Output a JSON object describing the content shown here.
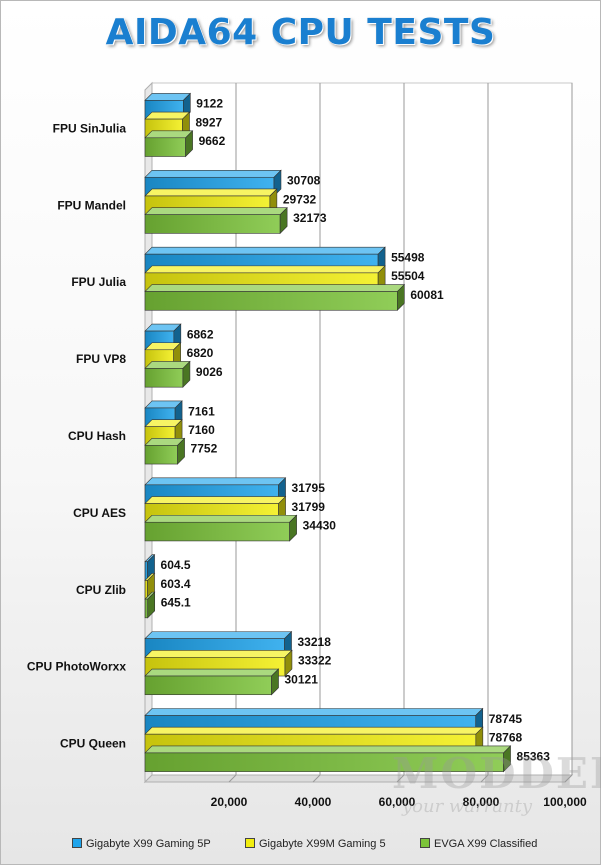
{
  "chart_data": {
    "type": "bar",
    "orientation": "horizontal",
    "style": "3d",
    "title": "AIDA64 CPU TESTS",
    "categories": [
      "FPU SinJulia",
      "FPU Mandel",
      "FPU Julia",
      "FPU VP8",
      "CPU Hash",
      "CPU AES",
      "CPU Zlib",
      "CPU PhotoWorxx",
      "CPU Queen"
    ],
    "series": [
      {
        "name": "Gigabyte X99 Gaming 5P",
        "color": "#1ea4ec",
        "values": [
          9122,
          30708,
          55498,
          6862,
          7161,
          31795,
          604.5,
          33218,
          78745
        ],
        "labels": [
          "9122",
          "30708",
          "55498",
          "6862",
          "7161",
          "31795",
          "604.5",
          "33218",
          "78745"
        ]
      },
      {
        "name": "Gigabyte X99M Gaming 5",
        "color": "#f2ee10",
        "values": [
          8927,
          29732,
          55504,
          6820,
          7160,
          31799,
          603.4,
          33322,
          78768
        ],
        "labels": [
          "8927",
          "29732",
          "55504",
          "6820",
          "7160",
          "31799",
          "603.4",
          "33322",
          "78768"
        ]
      },
      {
        "name": "EVGA X99 Classified",
        "color": "#7cc43a",
        "values": [
          9662,
          32173,
          60081,
          9026,
          7752,
          34430,
          645.1,
          30121,
          85363
        ],
        "labels": [
          "9662",
          "32173",
          "60081",
          "9026",
          "7752",
          "34430",
          "645.1",
          "30121",
          "85363"
        ]
      }
    ],
    "xlim": [
      0,
      100000
    ],
    "x_ticks": [
      20000,
      40000,
      60000,
      80000,
      100000
    ],
    "x_tick_labels": [
      "20,000",
      "40,000",
      "60,000",
      "80,000",
      "100,000"
    ],
    "grid": true,
    "legend_position": "bottom"
  },
  "watermark": {
    "line1": "MODDERS",
    "line2": "your warranty"
  }
}
